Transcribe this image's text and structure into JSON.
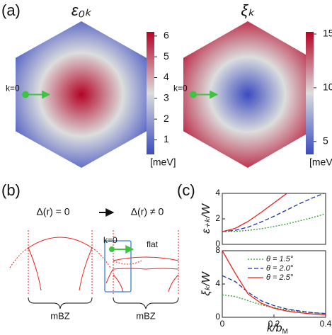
{
  "panel_labels": [
    "(a)",
    "(b)",
    "(c)"
  ],
  "chart_data": [
    {
      "type": "heatmap",
      "title": "ε₀ₖ",
      "profile": "center-high",
      "colormap": [
        "#3b4cc0",
        "#dcdddd",
        "#b40426"
      ],
      "colorbar_lim": [
        0.3,
        6.2
      ],
      "colorbar_ticks": [
        1,
        2,
        3,
        4,
        5,
        6
      ],
      "colorbar_label": "[meV]",
      "annotation": "k=0",
      "marker_color": "#3ec43e"
    },
    {
      "type": "heatmap",
      "title": "ξₖ",
      "profile": "center-low",
      "colormap": [
        "#3b4cc0",
        "#dcdddd",
        "#b40426"
      ],
      "colorbar_lim": [
        3.8,
        15.2
      ],
      "colorbar_ticks": [
        5,
        10,
        15
      ],
      "colorbar_label": "[meV]",
      "annotation": "k=0",
      "marker_color": "#3ec43e"
    },
    {
      "type": "line",
      "ylabel": "ε₊ₖ/W",
      "x": [
        0,
        0.05,
        0.1,
        0.15,
        0.2,
        0.25,
        0.3,
        0.35,
        0.4
      ],
      "series": [
        {
          "color": "#2ca02c",
          "dash": "dotted",
          "values": [
            1,
            1.02,
            1.1,
            1.22,
            1.4,
            1.6,
            1.85,
            2.1,
            2.4
          ]
        },
        {
          "color": "#1f2fa8",
          "dash": "dashed",
          "values": [
            1,
            1.1,
            1.35,
            1.75,
            2.2,
            2.7,
            3.2,
            3.65,
            4.05
          ]
        },
        {
          "color": "#e8201c",
          "dash": "solid",
          "values": [
            1,
            1.25,
            1.8,
            2.5,
            3.25,
            4.0,
            null,
            null,
            null
          ]
        }
      ],
      "xlim": [
        0,
        0.4
      ],
      "ylim": [
        0,
        4
      ],
      "yticks": [
        0,
        2,
        4
      ]
    },
    {
      "type": "line",
      "ylabel": "ξₖ/W",
      "xlabel": "k/b",
      "xlabel_subscript": "M",
      "x": [
        0,
        0.05,
        0.1,
        0.15,
        0.2,
        0.25,
        0.3,
        0.35,
        0.4
      ],
      "series": [
        {
          "name": "θ = 1.5°",
          "color": "#2ca02c",
          "dash": "dotted",
          "values": [
            2.7,
            2.5,
            2.0,
            1.5,
            1.15,
            0.9,
            0.7,
            0.55,
            0.45
          ]
        },
        {
          "name": "θ = 2.0°",
          "color": "#1f2fa8",
          "dash": "dashed",
          "values": [
            5,
            4.3,
            3.0,
            2.0,
            1.4,
            1.0,
            0.75,
            0.55,
            0.45
          ]
        },
        {
          "name": "θ = 2.5°",
          "color": "#e8201c",
          "dash": "solid",
          "values": [
            8,
            5.3,
            2.8,
            1.7,
            1.1,
            0.75,
            0.55,
            0.4,
            0.3
          ]
        }
      ],
      "xlim": [
        0,
        0.4
      ],
      "xticks": [
        0,
        0.2,
        0.4
      ],
      "ylim": [
        0,
        8
      ],
      "yticks": [
        0,
        4,
        8
      ],
      "legend": "upper right"
    }
  ],
  "diagram": {
    "left_label": "Δ(r) = 0",
    "right_label": "Δ(r) ≠ 0",
    "k_label": "k=0",
    "flat_label": "flat",
    "zone_labels": [
      "mBZ",
      "mBZ"
    ]
  }
}
